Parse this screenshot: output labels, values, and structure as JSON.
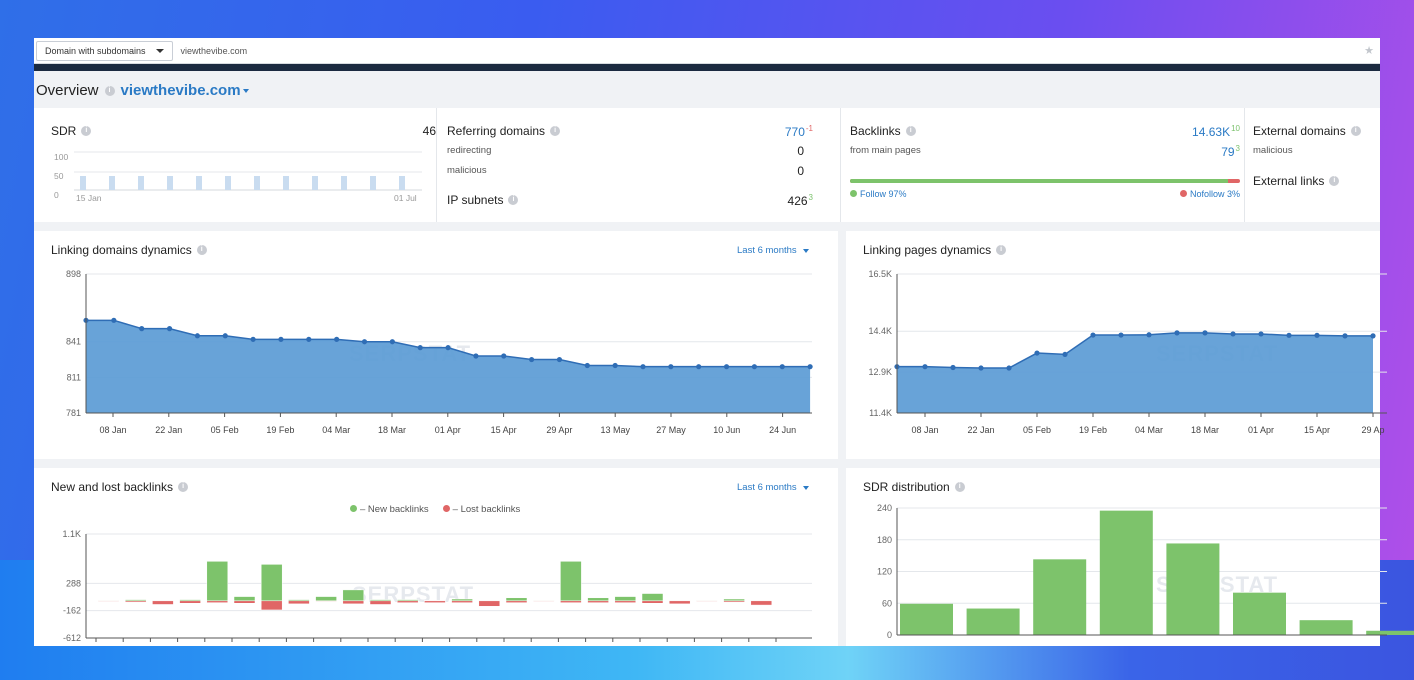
{
  "search": {
    "scope_label": "Domain with subdomains",
    "url": "viewthevibe.com"
  },
  "header": {
    "title": "Overview",
    "domain": "viewthevibe.com"
  },
  "summary": {
    "sdr": {
      "label": "SDR",
      "value": "46",
      "axis": [
        "100",
        "50",
        "0"
      ],
      "start": "15 Jan",
      "end": "01 Jul"
    },
    "referring": {
      "label": "Referring domains",
      "value": "770",
      "delta": "-1",
      "rows": [
        {
          "label": "redirecting",
          "value": "0"
        },
        {
          "label": "malicious",
          "value": "0"
        }
      ],
      "ip_label": "IP subnets",
      "ip_value": "426",
      "ip_delta": "3"
    },
    "backlinks": {
      "label": "Backlinks",
      "value": "14.63K",
      "delta": "10",
      "from_main_label": "from main pages",
      "from_main_value": "79",
      "from_main_delta": "3",
      "follow_pct": 97,
      "follow_label": "Follow 97%",
      "nofollow_label": "Nofollow 3%"
    },
    "external": {
      "label": "External domains",
      "sub": "malicious",
      "links_label": "External links"
    }
  },
  "colors": {
    "accent": "#2a7ac5",
    "area": "#5b9bd5",
    "green": "#7dc36b",
    "red": "#e06666"
  },
  "watermark": "SERPSTAT",
  "panels": {
    "linking_domains": {
      "title": "Linking domains dynamics",
      "period": "Last 6 months"
    },
    "linking_pages": {
      "title": "Linking pages dynamics"
    },
    "new_lost": {
      "title": "New and lost backlinks",
      "period": "Last 6 months",
      "legend_new": "– New backlinks",
      "legend_lost": "– Lost backlinks"
    },
    "sdr_dist": {
      "title": "SDR distribution"
    }
  },
  "chart_data": [
    {
      "type": "area",
      "title": "Linking domains dynamics",
      "ylim": [
        781,
        898
      ],
      "yticks": [
        "898",
        "841",
        "811",
        "781"
      ],
      "xticks": [
        "08 Jan",
        "22 Jan",
        "05 Feb",
        "19 Feb",
        "04 Mar",
        "18 Mar",
        "01 Apr",
        "15 Apr",
        "29 Apr",
        "13 May",
        "27 May",
        "10 Jun",
        "24 Jun"
      ],
      "values": [
        859,
        859,
        852,
        852,
        846,
        846,
        843,
        843,
        843,
        843,
        841,
        841,
        836,
        836,
        829,
        829,
        826,
        826,
        821,
        821,
        820,
        820,
        820,
        820,
        820,
        820,
        820
      ]
    },
    {
      "type": "area",
      "title": "Linking pages dynamics",
      "ylim": [
        11400,
        16500
      ],
      "yticks": [
        "16.5K",
        "14.4K",
        "12.9K",
        "11.4K"
      ],
      "xticks": [
        "08 Jan",
        "22 Jan",
        "05 Feb",
        "19 Feb",
        "04 Mar",
        "18 Mar",
        "01 Apr",
        "15 Apr",
        "29 Ap"
      ],
      "values": [
        13100,
        13100,
        13070,
        13050,
        13050,
        13600,
        13550,
        14260,
        14260,
        14270,
        14340,
        14340,
        14300,
        14300,
        14250,
        14250,
        14230,
        14230
      ]
    },
    {
      "type": "bar",
      "title": "New and lost backlinks",
      "ylim": [
        -612,
        1100
      ],
      "yticks": [
        "1.1K",
        "288",
        "-162",
        "-612"
      ],
      "series": [
        {
          "name": "New backlinks",
          "values": [
            10,
            20,
            10,
            20,
            650,
            70,
            600,
            20,
            70,
            180,
            20,
            20,
            10,
            30,
            10,
            50,
            10,
            650,
            50,
            70,
            120,
            10,
            10,
            30,
            10
          ]
        },
        {
          "name": "Lost backlinks",
          "values": [
            -10,
            -20,
            -60,
            -40,
            -30,
            -40,
            -150,
            -50,
            -10,
            -50,
            -60,
            -30,
            -30,
            -30,
            -90,
            -30,
            -10,
            -30,
            -30,
            -30,
            -40,
            -50,
            -10,
            -20,
            -70
          ]
        }
      ]
    },
    {
      "type": "bar",
      "title": "SDR distribution",
      "ylim": [
        0,
        240
      ],
      "yticks": [
        "240",
        "180",
        "120",
        "60",
        "0"
      ],
      "values": [
        59,
        50,
        143,
        235,
        173,
        80,
        28,
        8
      ]
    }
  ]
}
